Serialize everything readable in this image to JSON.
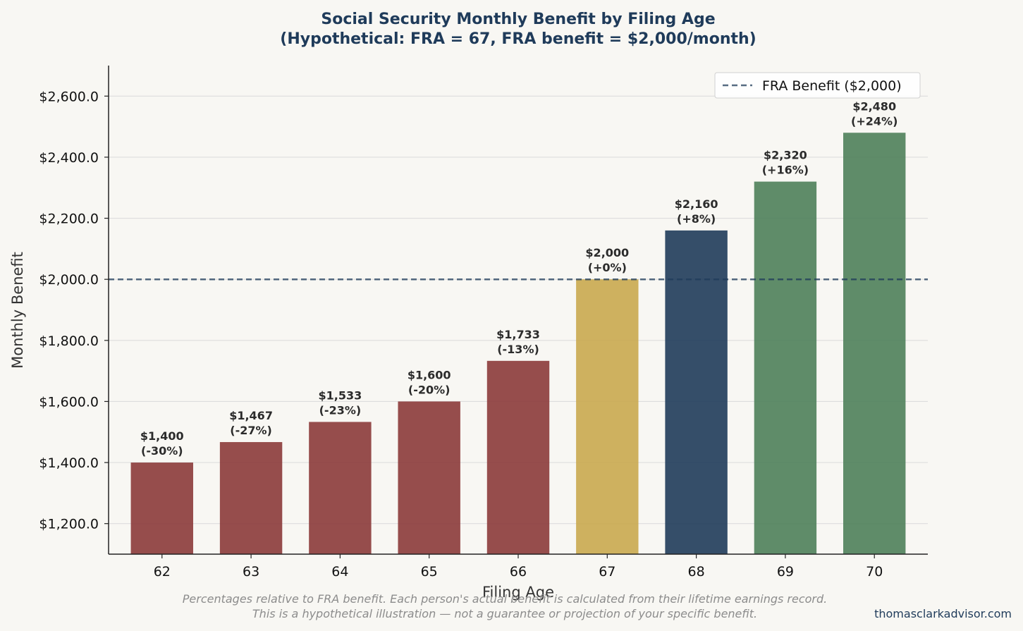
{
  "chart_data": {
    "type": "bar",
    "title_lines": [
      "Social Security Monthly Benefit by Filing Age",
      "(Hypothetical: FRA = 67, FRA benefit = $2,000/month)"
    ],
    "xlabel": "Filing Age",
    "ylabel": "Monthly Benefit",
    "categories": [
      "62",
      "63",
      "64",
      "65",
      "66",
      "67",
      "68",
      "69",
      "70"
    ],
    "values": [
      1400,
      1467,
      1533,
      1600,
      1733,
      2000,
      2160,
      2320,
      2480
    ],
    "value_labels": [
      "$1,400",
      "$1,467",
      "$1,533",
      "$1,600",
      "$1,733",
      "$2,000",
      "$2,160",
      "$2,320",
      "$2,480"
    ],
    "pct_labels": [
      "(-30%)",
      "(-27%)",
      "(-23%)",
      "(-20%)",
      "(-13%)",
      "(+0%)",
      "(+8%)",
      "(+16%)",
      "(+24%)"
    ],
    "bar_colors": [
      "#8b3a3a",
      "#8b3a3a",
      "#8b3a3a",
      "#8b3a3a",
      "#8b3a3a",
      "#c9a94f",
      "#1f3b5a",
      "#4e7f5a",
      "#4e7f5a"
    ],
    "ylim": [
      1100,
      2700
    ],
    "yticks": [
      1200,
      1400,
      1600,
      1800,
      2000,
      2200,
      2400,
      2600
    ],
    "ytick_labels": [
      "$1,200.0",
      "$1,400.0",
      "$1,600.0",
      "$1,800.0",
      "$2,000.0",
      "$2,200.0",
      "$2,400.0",
      "$2,600.0"
    ],
    "reference_line": {
      "value": 2000,
      "label": "FRA Benefit ($2,000)",
      "color": "#1f3b5a",
      "style": "dashed"
    },
    "grid": "horizontal",
    "legend_position": "top-right",
    "footnote_lines": [
      "Percentages relative to FRA benefit. Each person's actual benefit is calculated from their lifetime earnings record.",
      "This is a hypothetical illustration — not a guarantee or projection of your specific benefit."
    ],
    "credit": "thomasclarkadvisor.com"
  }
}
